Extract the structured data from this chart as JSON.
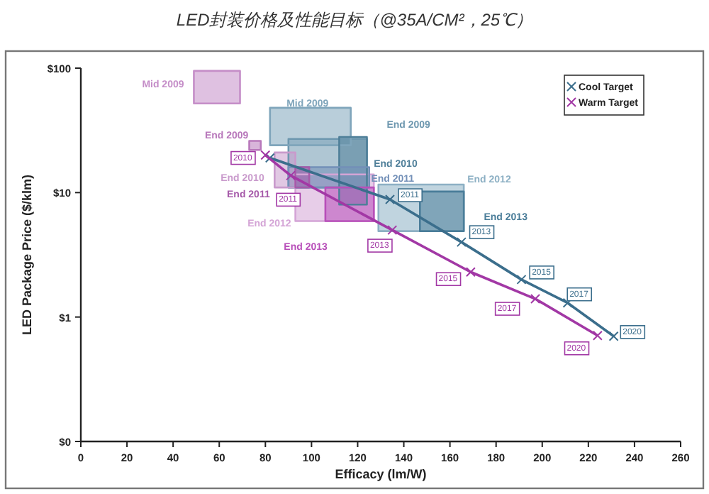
{
  "chart_data": {
    "type": "line",
    "title": "LED封装价格及性能目标（@35A/CM²，25℃）",
    "xlabel": "Efficacy (lm/W)",
    "ylabel": "LED Package Price ($/klm)",
    "xlim": [
      0,
      260
    ],
    "xticks": [
      0,
      20,
      40,
      60,
      80,
      100,
      120,
      140,
      160,
      180,
      200,
      220,
      240,
      260
    ],
    "ylim": [
      0.1,
      100
    ],
    "yticks": [
      {
        "value": 0.1,
        "label": "$0"
      },
      {
        "value": 1,
        "label": "$1"
      },
      {
        "value": 10,
        "label": "$10"
      },
      {
        "value": 100,
        "label": "$100"
      }
    ],
    "log": "y",
    "grid": false,
    "legend": "top right",
    "series": [
      {
        "type": "area",
        "name": "Mid 2009",
        "color": "#c58ec8",
        "x": [
          49,
          69,
          69,
          49,
          49
        ],
        "values": [
          52,
          52,
          95,
          95,
          52
        ]
      },
      {
        "type": "area",
        "name": "End 2009",
        "color": "#b878bb",
        "x": [
          73,
          78,
          78,
          73,
          73
        ],
        "values": [
          22,
          22,
          26,
          26,
          22
        ]
      },
      {
        "type": "area",
        "name": "End 2010",
        "color": "#c99acc",
        "x": [
          84,
          93,
          93,
          84,
          84
        ],
        "values": [
          11,
          11,
          21,
          21,
          11
        ]
      },
      {
        "type": "area",
        "name": "End 2011",
        "color": "#a65aa9",
        "x": [
          93,
          99,
          99,
          93,
          93
        ],
        "values": [
          11,
          11,
          16,
          16,
          11
        ]
      },
      {
        "type": "area",
        "name": "End 2012",
        "color": "#d4a4d6",
        "x": [
          93,
          127,
          127,
          93,
          93
        ],
        "values": [
          5.9,
          5.9,
          14,
          14,
          5.9
        ]
      },
      {
        "type": "area",
        "name": "End 2013",
        "color": "#b84fb9",
        "x": [
          106,
          127,
          127,
          106,
          106
        ],
        "values": [
          5.9,
          5.9,
          11,
          11,
          5.9
        ]
      },
      {
        "type": "area",
        "name": "Mid 2009",
        "color": "#7fa5bb",
        "x": [
          82,
          117,
          117,
          82,
          82
        ],
        "values": [
          24,
          24,
          48,
          48,
          24
        ]
      },
      {
        "type": "area",
        "name": "End 2009",
        "color": "#6d97af",
        "x": [
          90,
          124,
          124,
          90,
          90
        ],
        "values": [
          11,
          11,
          27,
          27,
          11
        ]
      },
      {
        "type": "area",
        "name": "End 2010",
        "color": "#4f7f99",
        "x": [
          112,
          124,
          124,
          112,
          112
        ],
        "values": [
          8,
          8,
          28,
          28,
          8
        ]
      },
      {
        "type": "area",
        "name": "End 2011",
        "color": "#7390b8",
        "x": [
          90,
          125,
          125,
          90,
          90
        ],
        "values": [
          11,
          11,
          16,
          16,
          11
        ]
      },
      {
        "type": "area",
        "name": "End 2012",
        "color": "#8db0c4",
        "x": [
          129,
          166,
          166,
          129,
          129
        ],
        "values": [
          4.9,
          4.9,
          11.6,
          11.6,
          4.9
        ]
      },
      {
        "type": "area",
        "name": "End 2013",
        "color": "#4a7d99",
        "x": [
          147,
          166,
          166,
          147,
          147
        ],
        "values": [
          4.9,
          4.9,
          10.2,
          10.2,
          4.9
        ]
      },
      {
        "name": "Cool Target",
        "marker": "cross",
        "color": "#3b6e8c",
        "x": [
          82,
          134,
          165,
          191,
          211,
          231
        ],
        "values": [
          19,
          8.8,
          4,
          2,
          1.3,
          0.7
        ]
      },
      {
        "name": "Warm Target",
        "marker": "cross",
        "color": "#a238a5",
        "x": [
          80,
          91,
          135,
          169,
          197,
          224
        ],
        "values": [
          20,
          13.7,
          5,
          2.3,
          1.4,
          0.71
        ]
      }
    ],
    "annotations": [
      {
        "text": "2011",
        "x": 134,
        "y": 8.8
      },
      {
        "text": "2013",
        "x": 165,
        "y": 4
      },
      {
        "text": "2015",
        "x": 191,
        "y": 2
      },
      {
        "text": "2017",
        "x": 211,
        "y": 1.3
      },
      {
        "text": "2020",
        "x": 231,
        "y": 0.7
      },
      {
        "text": "2010",
        "x": 80,
        "y": 20
      },
      {
        "text": "2011",
        "x": 91,
        "y": 13.7
      },
      {
        "text": "2013",
        "x": 135,
        "y": 5
      },
      {
        "text": "2015",
        "x": 169,
        "y": 2.3
      },
      {
        "text": "2017",
        "x": 197,
        "y": 1.4
      },
      {
        "text": "2020",
        "x": 224,
        "y": 0.71
      }
    ]
  }
}
